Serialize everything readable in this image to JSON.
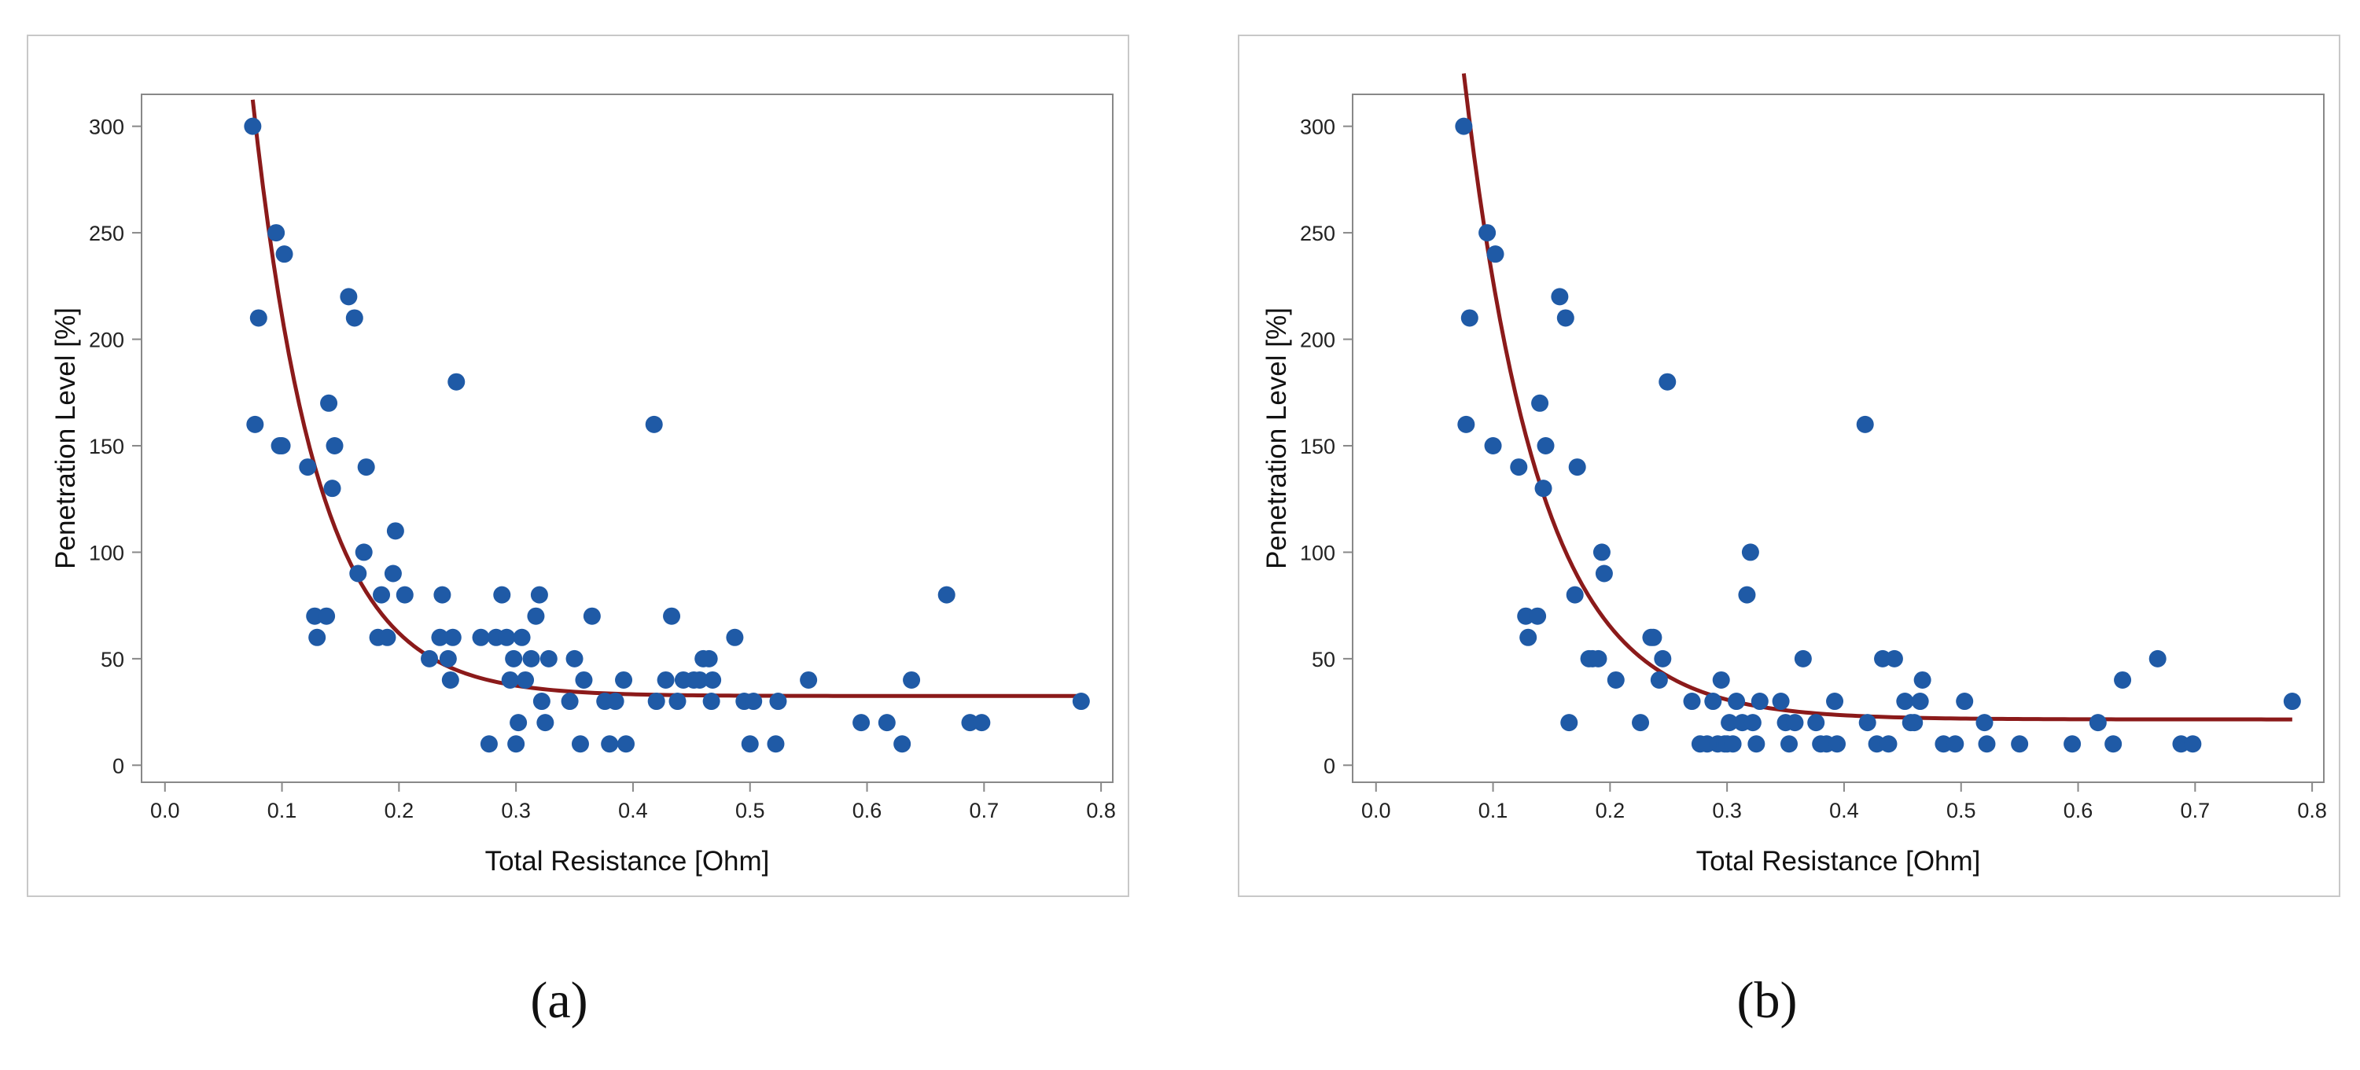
{
  "colors": {
    "points": "#1f5aa6",
    "curve": "#8b1a1a",
    "frame": "#c8c8c8",
    "axis": "#888888"
  },
  "chart_data": [
    {
      "type": "scatter",
      "caption": "(a)",
      "xlabel": "Total Resistance [Ohm]",
      "ylabel": "Penetration Level [%]",
      "xlim": [
        -0.02,
        0.81
      ],
      "ylim": [
        -8,
        315
      ],
      "xticks": [
        "0.0",
        "0.1",
        "0.2",
        "0.3",
        "0.4",
        "0.5",
        "0.6",
        "0.7",
        "0.8"
      ],
      "yticks": [
        "0",
        "50",
        "100",
        "150",
        "200",
        "250",
        "300"
      ],
      "points": [
        [
          0.075,
          300
        ],
        [
          0.08,
          210
        ],
        [
          0.077,
          160
        ],
        [
          0.095,
          250
        ],
        [
          0.102,
          240
        ],
        [
          0.1,
          150
        ],
        [
          0.098,
          150
        ],
        [
          0.122,
          140
        ],
        [
          0.128,
          70
        ],
        [
          0.13,
          60
        ],
        [
          0.138,
          70
        ],
        [
          0.14,
          170
        ],
        [
          0.145,
          150
        ],
        [
          0.143,
          130
        ],
        [
          0.157,
          220
        ],
        [
          0.162,
          210
        ],
        [
          0.165,
          90
        ],
        [
          0.17,
          100
        ],
        [
          0.172,
          140
        ],
        [
          0.182,
          60
        ],
        [
          0.185,
          80
        ],
        [
          0.19,
          60
        ],
        [
          0.195,
          90
        ],
        [
          0.197,
          110
        ],
        [
          0.205,
          80
        ],
        [
          0.226,
          50
        ],
        [
          0.235,
          60
        ],
        [
          0.237,
          80
        ],
        [
          0.242,
          50
        ],
        [
          0.244,
          40
        ],
        [
          0.246,
          60
        ],
        [
          0.249,
          180
        ],
        [
          0.27,
          60
        ],
        [
          0.277,
          10
        ],
        [
          0.283,
          60
        ],
        [
          0.288,
          80
        ],
        [
          0.292,
          60
        ],
        [
          0.295,
          40
        ],
        [
          0.298,
          50
        ],
        [
          0.3,
          10
        ],
        [
          0.302,
          20
        ],
        [
          0.305,
          60
        ],
        [
          0.308,
          40
        ],
        [
          0.313,
          50
        ],
        [
          0.317,
          70
        ],
        [
          0.32,
          80
        ],
        [
          0.322,
          30
        ],
        [
          0.325,
          20
        ],
        [
          0.328,
          50
        ],
        [
          0.346,
          30
        ],
        [
          0.35,
          50
        ],
        [
          0.355,
          10
        ],
        [
          0.358,
          40
        ],
        [
          0.365,
          70
        ],
        [
          0.376,
          30
        ],
        [
          0.38,
          10
        ],
        [
          0.385,
          30
        ],
        [
          0.392,
          40
        ],
        [
          0.394,
          10
        ],
        [
          0.418,
          160
        ],
        [
          0.42,
          30
        ],
        [
          0.428,
          40
        ],
        [
          0.433,
          70
        ],
        [
          0.438,
          30
        ],
        [
          0.443,
          40
        ],
        [
          0.452,
          40
        ],
        [
          0.457,
          40
        ],
        [
          0.46,
          50
        ],
        [
          0.465,
          50
        ],
        [
          0.467,
          30
        ],
        [
          0.468,
          40
        ],
        [
          0.487,
          60
        ],
        [
          0.495,
          30
        ],
        [
          0.5,
          10
        ],
        [
          0.503,
          30
        ],
        [
          0.522,
          10
        ],
        [
          0.524,
          30
        ],
        [
          0.55,
          40
        ],
        [
          0.595,
          20
        ],
        [
          0.617,
          20
        ],
        [
          0.63,
          10
        ],
        [
          0.638,
          40
        ],
        [
          0.668,
          80
        ],
        [
          0.688,
          20
        ],
        [
          0.698,
          20
        ],
        [
          0.783,
          30
        ]
      ],
      "fit": {
        "a": 32.5,
        "b": 1080,
        "c": 18,
        "x_min": 0.075,
        "x_max": 0.783
      }
    },
    {
      "type": "scatter",
      "caption": "(b)",
      "xlabel": "Total Resistance [Ohm]",
      "ylabel": "Penetration Level [%]",
      "xlim": [
        -0.02,
        0.81
      ],
      "ylim": [
        -8,
        315
      ],
      "xticks": [
        "0.0",
        "0.1",
        "0.2",
        "0.3",
        "0.4",
        "0.5",
        "0.6",
        "0.7",
        "0.8"
      ],
      "yticks": [
        "0",
        "50",
        "100",
        "150",
        "200",
        "250",
        "300"
      ],
      "points": [
        [
          0.075,
          300
        ],
        [
          0.08,
          210
        ],
        [
          0.077,
          160
        ],
        [
          0.095,
          250
        ],
        [
          0.102,
          240
        ],
        [
          0.1,
          150
        ],
        [
          0.122,
          140
        ],
        [
          0.128,
          70
        ],
        [
          0.13,
          60
        ],
        [
          0.138,
          70
        ],
        [
          0.14,
          170
        ],
        [
          0.145,
          150
        ],
        [
          0.143,
          130
        ],
        [
          0.157,
          220
        ],
        [
          0.162,
          210
        ],
        [
          0.165,
          20
        ],
        [
          0.17,
          80
        ],
        [
          0.172,
          140
        ],
        [
          0.182,
          50
        ],
        [
          0.185,
          50
        ],
        [
          0.19,
          50
        ],
        [
          0.193,
          100
        ],
        [
          0.195,
          90
        ],
        [
          0.205,
          40
        ],
        [
          0.226,
          20
        ],
        [
          0.235,
          60
        ],
        [
          0.237,
          60
        ],
        [
          0.242,
          40
        ],
        [
          0.245,
          50
        ],
        [
          0.249,
          180
        ],
        [
          0.27,
          30
        ],
        [
          0.277,
          10
        ],
        [
          0.283,
          10
        ],
        [
          0.288,
          30
        ],
        [
          0.292,
          10
        ],
        [
          0.295,
          40
        ],
        [
          0.298,
          10
        ],
        [
          0.3,
          10
        ],
        [
          0.302,
          20
        ],
        [
          0.305,
          10
        ],
        [
          0.308,
          30
        ],
        [
          0.313,
          20
        ],
        [
          0.317,
          80
        ],
        [
          0.32,
          100
        ],
        [
          0.322,
          20
        ],
        [
          0.325,
          10
        ],
        [
          0.328,
          30
        ],
        [
          0.346,
          30
        ],
        [
          0.35,
          20
        ],
        [
          0.353,
          10
        ],
        [
          0.358,
          20
        ],
        [
          0.365,
          50
        ],
        [
          0.376,
          20
        ],
        [
          0.38,
          10
        ],
        [
          0.385,
          10
        ],
        [
          0.392,
          30
        ],
        [
          0.394,
          10
        ],
        [
          0.418,
          160
        ],
        [
          0.42,
          20
        ],
        [
          0.428,
          10
        ],
        [
          0.433,
          50
        ],
        [
          0.438,
          10
        ],
        [
          0.443,
          50
        ],
        [
          0.452,
          30
        ],
        [
          0.457,
          20
        ],
        [
          0.46,
          20
        ],
        [
          0.465,
          30
        ],
        [
          0.467,
          40
        ],
        [
          0.485,
          10
        ],
        [
          0.495,
          10
        ],
        [
          0.503,
          30
        ],
        [
          0.52,
          20
        ],
        [
          0.522,
          10
        ],
        [
          0.55,
          10
        ],
        [
          0.595,
          10
        ],
        [
          0.617,
          20
        ],
        [
          0.63,
          10
        ],
        [
          0.638,
          40
        ],
        [
          0.668,
          50
        ],
        [
          0.688,
          10
        ],
        [
          0.698,
          10
        ],
        [
          0.783,
          30
        ]
      ],
      "fit": {
        "a": 21.5,
        "b": 970,
        "c": 15.5,
        "x_min": 0.075,
        "x_max": 0.783
      }
    }
  ]
}
